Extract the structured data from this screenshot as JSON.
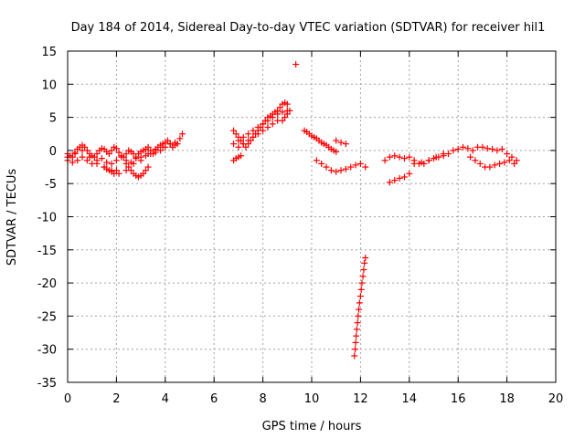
{
  "chart_data": {
    "type": "scatter",
    "title": "Day 184 of 2014, Sidereal Day-to-day VTEC variation (SDTVAR) for receiver hil1",
    "xlabel": "GPS time / hours",
    "ylabel": "SDTVAR / TECUs",
    "xlim": [
      0,
      20
    ],
    "ylim": [
      -35,
      15
    ],
    "xticks": [
      0,
      2,
      4,
      6,
      8,
      10,
      12,
      14,
      16,
      18,
      20
    ],
    "yticks": [
      -35,
      -30,
      -25,
      -20,
      -15,
      -10,
      -5,
      0,
      5,
      10,
      15
    ],
    "grid": true,
    "marker": "+",
    "color": "#ff0000",
    "series": [
      {
        "name": "SDTVAR",
        "x": [
          0.0,
          0.1,
          0.2,
          0.3,
          0.4,
          0.5,
          0.6,
          0.7,
          0.8,
          0.9,
          1.0,
          1.1,
          1.2,
          1.3,
          1.4,
          1.5,
          1.6,
          1.7,
          1.8,
          1.9,
          2.0,
          2.1,
          2.2,
          2.3,
          2.4,
          2.5,
          2.6,
          2.7,
          2.8,
          2.9,
          3.0,
          3.1,
          3.2,
          3.3,
          3.4,
          3.5,
          3.6,
          3.7,
          3.8,
          3.9,
          4.0,
          4.1,
          4.2,
          4.3,
          4.4,
          4.5,
          4.6,
          4.7,
          0.0,
          0.2,
          0.4,
          0.6,
          0.8,
          1.0,
          1.2,
          1.4,
          1.6,
          1.8,
          2.0,
          2.2,
          2.4,
          2.6,
          2.8,
          3.0,
          3.2,
          3.4,
          3.6,
          3.8,
          4.0,
          4.2,
          4.4,
          0.0,
          0.3,
          0.6,
          0.9,
          1.2,
          1.5,
          1.8,
          2.1,
          2.4,
          2.7,
          3.0,
          3.3,
          3.6,
          3.9,
          4.2,
          1.5,
          1.6,
          1.7,
          1.8,
          1.9,
          2.0,
          2.4,
          2.5,
          2.6,
          2.7,
          2.8,
          2.9,
          3.0,
          3.1,
          3.2,
          3.3,
          6.8,
          6.9,
          7.0,
          7.1,
          7.2,
          7.3,
          7.4,
          7.5,
          7.6,
          7.7,
          7.8,
          7.9,
          8.0,
          8.1,
          8.2,
          8.3,
          8.4,
          8.5,
          8.6,
          8.7,
          8.8,
          8.9,
          9.0,
          6.8,
          7.0,
          7.2,
          7.4,
          7.6,
          7.8,
          8.0,
          8.2,
          8.4,
          8.6,
          8.8,
          9.0,
          7.0,
          7.2,
          7.4,
          7.6,
          7.8,
          8.0,
          8.2,
          8.4,
          8.6,
          6.8,
          6.9,
          7.0,
          7.1,
          8.8,
          8.9,
          9.0,
          9.1,
          9.35,
          9.7,
          9.8,
          9.9,
          10.0,
          10.1,
          10.2,
          10.3,
          10.4,
          10.5,
          10.6,
          10.7,
          10.8,
          10.9,
          11.0,
          10.2,
          10.4,
          10.6,
          10.8,
          11.0,
          11.2,
          11.4,
          11.6,
          11.8,
          12.0,
          12.2,
          11.0,
          11.2,
          11.4,
          11.75,
          11.78,
          11.8,
          11.82,
          11.85,
          11.88,
          11.9,
          11.93,
          11.96,
          12.0,
          12.03,
          12.06,
          12.1,
          12.13,
          12.16,
          12.2,
          13.0,
          13.2,
          13.4,
          13.6,
          13.8,
          14.0,
          14.2,
          14.4,
          14.6,
          14.8,
          15.0,
          15.2,
          15.4,
          15.6,
          15.8,
          16.0,
          16.2,
          16.4,
          16.6,
          16.8,
          17.0,
          17.2,
          17.4,
          17.6,
          17.8,
          18.0,
          18.2,
          18.4,
          13.2,
          13.4,
          13.6,
          13.8,
          14.0,
          14.2,
          14.5,
          14.8,
          15.1,
          15.4,
          16.5,
          16.7,
          16.9,
          17.1,
          17.3,
          17.5,
          17.7,
          17.9,
          18.1,
          18.3
        ],
        "y": [
          -0.5,
          -0.8,
          -1.0,
          -0.3,
          0.2,
          0.5,
          0.8,
          0.5,
          0.0,
          -0.5,
          -0.8,
          -1.0,
          -0.5,
          0.0,
          0.3,
          0.2,
          -0.2,
          -0.5,
          0.0,
          0.5,
          0.3,
          -0.3,
          -0.8,
          -1.0,
          -0.5,
          0.0,
          -0.2,
          -0.5,
          -1.0,
          -0.5,
          -0.2,
          0.0,
          0.2,
          0.5,
          0.0,
          -0.5,
          0.2,
          0.5,
          0.8,
          1.0,
          1.2,
          1.5,
          1.0,
          0.5,
          0.8,
          1.0,
          1.8,
          2.5,
          -1.5,
          -1.8,
          -1.5,
          -1.0,
          -1.5,
          -2.0,
          -1.5,
          -1.2,
          -1.8,
          -2.0,
          -1.5,
          -1.0,
          -1.5,
          -1.8,
          -1.2,
          -1.0,
          -0.8,
          -0.5,
          -0.3,
          0.0,
          0.5,
          1.0,
          1.2,
          -1.0,
          -0.5,
          0.0,
          -1.0,
          -2.0,
          -2.5,
          -3.0,
          -3.5,
          -3.0,
          -2.0,
          -1.5,
          -0.5,
          0.0,
          0.5,
          1.0,
          -2.5,
          -2.8,
          -3.0,
          -3.2,
          -3.5,
          -3.0,
          -2.0,
          -2.5,
          -3.0,
          -3.5,
          -3.8,
          -4.0,
          -3.8,
          -3.5,
          -3.0,
          -2.5,
          3.0,
          2.5,
          2.0,
          1.5,
          1.0,
          0.5,
          1.0,
          1.5,
          2.0,
          2.5,
          3.0,
          3.5,
          4.0,
          4.5,
          5.0,
          5.2,
          5.5,
          5.8,
          6.0,
          6.5,
          7.0,
          7.2,
          7.0,
          1.0,
          1.5,
          2.0,
          2.5,
          3.0,
          3.5,
          4.0,
          4.5,
          5.0,
          5.5,
          5.8,
          6.0,
          0.5,
          1.0,
          1.5,
          2.0,
          2.5,
          3.0,
          3.5,
          4.0,
          4.5,
          -1.5,
          -1.2,
          -1.0,
          -0.8,
          4.5,
          5.0,
          5.5,
          6.0,
          13.0,
          3.0,
          2.8,
          2.5,
          2.2,
          2.0,
          1.8,
          1.5,
          1.2,
          1.0,
          0.8,
          0.5,
          0.2,
          0.0,
          -0.2,
          -1.5,
          -2.0,
          -2.5,
          -3.0,
          -3.2,
          -3.0,
          -2.8,
          -2.5,
          -2.2,
          -2.0,
          -2.5,
          1.5,
          1.2,
          1.0,
          -31.0,
          -30.0,
          -29.0,
          -28.0,
          -27.0,
          -26.0,
          -25.0,
          -24.0,
          -23.0,
          -22.0,
          -21.0,
          -20.0,
          -19.0,
          -18.0,
          -17.0,
          -16.2,
          -1.5,
          -1.0,
          -0.8,
          -1.0,
          -1.2,
          -1.0,
          -1.5,
          -2.0,
          -2.0,
          -1.5,
          -1.2,
          -1.0,
          -0.8,
          -0.5,
          0.0,
          0.2,
          0.5,
          0.3,
          0.0,
          0.5,
          0.5,
          0.3,
          0.2,
          0.0,
          0.2,
          -0.5,
          -1.0,
          -1.5,
          -4.8,
          -4.5,
          -4.2,
          -4.0,
          -3.5,
          -2.0,
          -1.8,
          -1.5,
          -1.0,
          -0.5,
          -1.0,
          -1.5,
          -2.0,
          -2.5,
          -2.5,
          -2.2,
          -2.0,
          -1.8,
          -1.5,
          -2.0
        ]
      }
    ]
  }
}
